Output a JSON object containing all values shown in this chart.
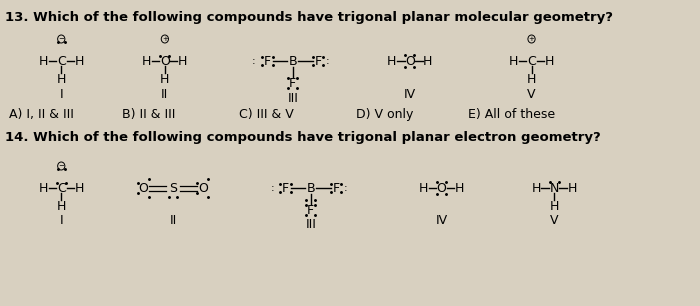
{
  "title13": "13. Which of the following compounds have trigonal planar molecular geometry?",
  "title14": "14. Which of the following compounds have trigonal planar electron geometry?",
  "answers13": [
    "A) I, II & III",
    "B) II & III",
    "C) III & V",
    "D) V only",
    "E) All of these"
  ],
  "bg_color": "#d8d0c0",
  "text_color": "#000000",
  "font_size": 9,
  "title_font_size": 9.5,
  "neg_charge": "−",
  "pos_charge": "+"
}
